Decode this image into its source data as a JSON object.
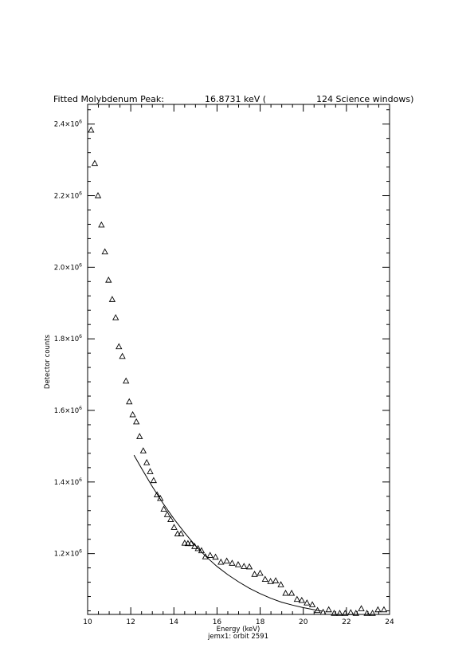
{
  "chart_data": {
    "type": "scatter",
    "title": {
      "prefix": "Fitted Molybdenum Peak:",
      "energy": "16.8731 keV (",
      "windows": "124 Science windows)"
    },
    "xlabel": "Energy (keV)",
    "ylabel": "Detector counts",
    "footer": "jemx1: orbit 2591",
    "xlim": [
      10,
      24
    ],
    "ylim": [
      1030000,
      2455000
    ],
    "xticks": [
      10,
      12,
      14,
      16,
      18,
      20,
      22,
      24
    ],
    "yticks": [
      {
        "value": 1200000,
        "mantissa": "1.2×10",
        "exp": "6"
      },
      {
        "value": 1400000,
        "mantissa": "1.4×10",
        "exp": "6"
      },
      {
        "value": 1600000,
        "mantissa": "1.6×10",
        "exp": "6"
      },
      {
        "value": 1800000,
        "mantissa": "1.8×10",
        "exp": "6"
      },
      {
        "value": 2000000,
        "mantissa": "2.0×10",
        "exp": "6"
      },
      {
        "value": 2200000,
        "mantissa": "2.2×10",
        "exp": "6"
      },
      {
        "value": 2400000,
        "mantissa": "2.4×10",
        "exp": "6"
      }
    ],
    "series": [
      {
        "marker": "triangle",
        "x": [
          10.16,
          10.33,
          10.48,
          10.64,
          10.8,
          10.97,
          11.14,
          11.3,
          11.45,
          11.61,
          11.78,
          11.93,
          12.09,
          12.26,
          12.41,
          12.58,
          12.74,
          12.9,
          13.06,
          13.22,
          13.37,
          13.53,
          13.69,
          13.85,
          14.01,
          14.17,
          14.33,
          14.5,
          14.65,
          14.8,
          14.96,
          15.12,
          15.28,
          15.46,
          15.68,
          15.93,
          16.18,
          16.45,
          16.7,
          16.98,
          17.25,
          17.5,
          17.74,
          18.0,
          18.23,
          18.48,
          18.72,
          18.96,
          19.18,
          19.46,
          19.71,
          19.93,
          20.17,
          20.42,
          20.66,
          20.92,
          21.18,
          21.43,
          21.69,
          21.94,
          22.2,
          22.44,
          22.69,
          22.95,
          23.21,
          23.46,
          23.74
        ],
        "y": [
          2383000,
          2290000,
          2200000,
          2118000,
          2043000,
          1964000,
          1910000,
          1859000,
          1778000,
          1751000,
          1682000,
          1624000,
          1588000,
          1568000,
          1527000,
          1487000,
          1454000,
          1429000,
          1404000,
          1364000,
          1354000,
          1324000,
          1309000,
          1295000,
          1273000,
          1255000,
          1255000,
          1229000,
          1228000,
          1228000,
          1220000,
          1214000,
          1208000,
          1191000,
          1195000,
          1190000,
          1176000,
          1179000,
          1173000,
          1169000,
          1164000,
          1163000,
          1142000,
          1145000,
          1128000,
          1122000,
          1124000,
          1113000,
          1089000,
          1089000,
          1072000,
          1069000,
          1062000,
          1057000,
          1041000,
          1036000,
          1043000,
          1033000,
          1033000,
          1033000,
          1035000,
          1033000,
          1046000,
          1033000,
          1033000,
          1043000,
          1043000
        ]
      },
      {
        "marker": "line",
        "x": [
          12.15,
          12.5,
          13.0,
          13.5,
          14.0,
          14.5,
          15.0,
          15.5,
          16.0,
          16.5,
          17.0,
          17.5,
          18.0,
          18.5,
          19.0,
          19.5,
          20.0,
          20.5,
          20.9
        ],
        "y": [
          1475000,
          1438000,
          1387000,
          1340000,
          1297000,
          1258000,
          1222000,
          1191000,
          1164000,
          1141000,
          1121000,
          1103000,
          1088000,
          1075000,
          1064000,
          1056000,
          1049000,
          1043000,
          1039000
        ]
      }
    ],
    "grid": false,
    "legend": "none"
  }
}
